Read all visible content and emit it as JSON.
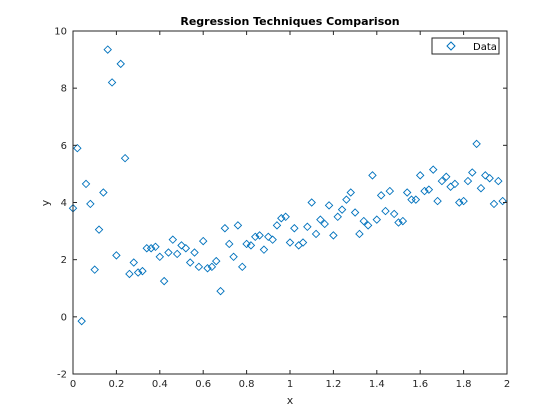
{
  "chart_data": {
    "type": "scatter",
    "title": "Regression Techniques Comparison",
    "xlabel": "x",
    "ylabel": "y",
    "xlim": [
      0,
      2
    ],
    "ylim": [
      -2,
      10
    ],
    "xticks": [
      0,
      0.2,
      0.4,
      0.6,
      0.8,
      1,
      1.2,
      1.4,
      1.6,
      1.8,
      2
    ],
    "xtick_labels": [
      "0",
      "0.2",
      "0.4",
      "0.6",
      "0.8",
      "1",
      "1.2",
      "1.4",
      "1.6",
      "1.8",
      "2"
    ],
    "yticks": [
      -2,
      0,
      2,
      4,
      6,
      8,
      10
    ],
    "ytick_labels": [
      "-2",
      "0",
      "2",
      "4",
      "6",
      "8",
      "10"
    ],
    "grid": false,
    "legend_position": "top-right",
    "marker": "diamond-open",
    "colors": {
      "marker": "#0072bd",
      "axis": "#262626",
      "background": "#ffffff"
    },
    "series": [
      {
        "name": "Data",
        "points": [
          [
            0.0,
            3.8
          ],
          [
            0.02,
            5.9
          ],
          [
            0.04,
            -0.15
          ],
          [
            0.06,
            4.65
          ],
          [
            0.08,
            3.95
          ],
          [
            0.1,
            1.65
          ],
          [
            0.12,
            3.05
          ],
          [
            0.14,
            4.35
          ],
          [
            0.16,
            9.35
          ],
          [
            0.18,
            8.2
          ],
          [
            0.2,
            2.15
          ],
          [
            0.22,
            8.85
          ],
          [
            0.24,
            5.55
          ],
          [
            0.26,
            1.5
          ],
          [
            0.28,
            1.9
          ],
          [
            0.3,
            1.55
          ],
          [
            0.32,
            1.6
          ],
          [
            0.34,
            2.4
          ],
          [
            0.36,
            2.4
          ],
          [
            0.38,
            2.45
          ],
          [
            0.4,
            2.1
          ],
          [
            0.42,
            1.25
          ],
          [
            0.44,
            2.25
          ],
          [
            0.46,
            2.7
          ],
          [
            0.48,
            2.2
          ],
          [
            0.5,
            2.5
          ],
          [
            0.52,
            2.4
          ],
          [
            0.54,
            1.9
          ],
          [
            0.56,
            2.25
          ],
          [
            0.58,
            1.75
          ],
          [
            0.6,
            2.65
          ],
          [
            0.62,
            1.7
          ],
          [
            0.64,
            1.75
          ],
          [
            0.66,
            1.95
          ],
          [
            0.68,
            0.9
          ],
          [
            0.7,
            3.1
          ],
          [
            0.72,
            2.55
          ],
          [
            0.74,
            2.1
          ],
          [
            0.76,
            3.2
          ],
          [
            0.78,
            1.75
          ],
          [
            0.8,
            2.55
          ],
          [
            0.82,
            2.5
          ],
          [
            0.84,
            2.8
          ],
          [
            0.86,
            2.85
          ],
          [
            0.88,
            2.35
          ],
          [
            0.9,
            2.8
          ],
          [
            0.92,
            2.7
          ],
          [
            0.94,
            3.2
          ],
          [
            0.96,
            3.45
          ],
          [
            0.98,
            3.5
          ],
          [
            1.0,
            2.6
          ],
          [
            1.02,
            3.1
          ],
          [
            1.04,
            2.5
          ],
          [
            1.06,
            2.6
          ],
          [
            1.08,
            3.15
          ],
          [
            1.1,
            4.0
          ],
          [
            1.12,
            2.9
          ],
          [
            1.14,
            3.4
          ],
          [
            1.16,
            3.25
          ],
          [
            1.18,
            3.9
          ],
          [
            1.2,
            2.85
          ],
          [
            1.22,
            3.5
          ],
          [
            1.24,
            3.75
          ],
          [
            1.26,
            4.1
          ],
          [
            1.28,
            4.35
          ],
          [
            1.3,
            3.65
          ],
          [
            1.32,
            2.9
          ],
          [
            1.34,
            3.35
          ],
          [
            1.36,
            3.2
          ],
          [
            1.38,
            4.95
          ],
          [
            1.4,
            3.4
          ],
          [
            1.42,
            4.25
          ],
          [
            1.44,
            3.7
          ],
          [
            1.46,
            4.4
          ],
          [
            1.48,
            3.6
          ],
          [
            1.5,
            3.3
          ],
          [
            1.52,
            3.35
          ],
          [
            1.54,
            4.35
          ],
          [
            1.56,
            4.1
          ],
          [
            1.58,
            4.1
          ],
          [
            1.6,
            4.95
          ],
          [
            1.62,
            4.4
          ],
          [
            1.64,
            4.45
          ],
          [
            1.66,
            5.15
          ],
          [
            1.68,
            4.05
          ],
          [
            1.7,
            4.75
          ],
          [
            1.72,
            4.9
          ],
          [
            1.74,
            4.55
          ],
          [
            1.76,
            4.65
          ],
          [
            1.78,
            4.0
          ],
          [
            1.8,
            4.05
          ],
          [
            1.82,
            4.75
          ],
          [
            1.84,
            5.05
          ],
          [
            1.86,
            6.05
          ],
          [
            1.88,
            4.5
          ],
          [
            1.9,
            4.95
          ],
          [
            1.92,
            4.85
          ],
          [
            1.94,
            3.95
          ],
          [
            1.96,
            4.75
          ],
          [
            1.98,
            4.05
          ]
        ]
      }
    ]
  }
}
